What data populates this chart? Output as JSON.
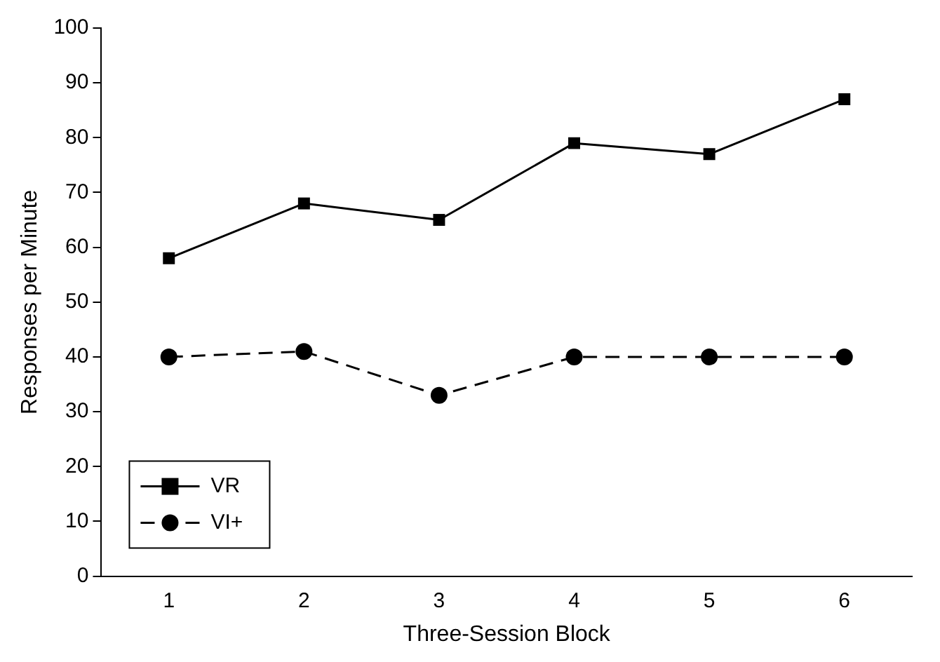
{
  "chart_data": {
    "type": "line",
    "xlabel": "Three-Session Block",
    "ylabel": "Responses per Minute",
    "categories": [
      "1",
      "2",
      "3",
      "4",
      "5",
      "6"
    ],
    "series": [
      {
        "name": "VR",
        "color": "#000000",
        "values": [
          58,
          68,
          65,
          79,
          77,
          87
        ],
        "marker": "square",
        "line_style": "solid"
      },
      {
        "name": "VI+",
        "color": "#000000",
        "values": [
          40,
          41,
          33,
          40,
          40,
          40
        ],
        "marker": "circle",
        "line_style": "dashed"
      }
    ],
    "ylim": [
      0,
      100
    ],
    "yticks": [
      0,
      10,
      20,
      30,
      40,
      50,
      60,
      70,
      80,
      90,
      100
    ],
    "grid": false,
    "legend": "bottom left"
  }
}
